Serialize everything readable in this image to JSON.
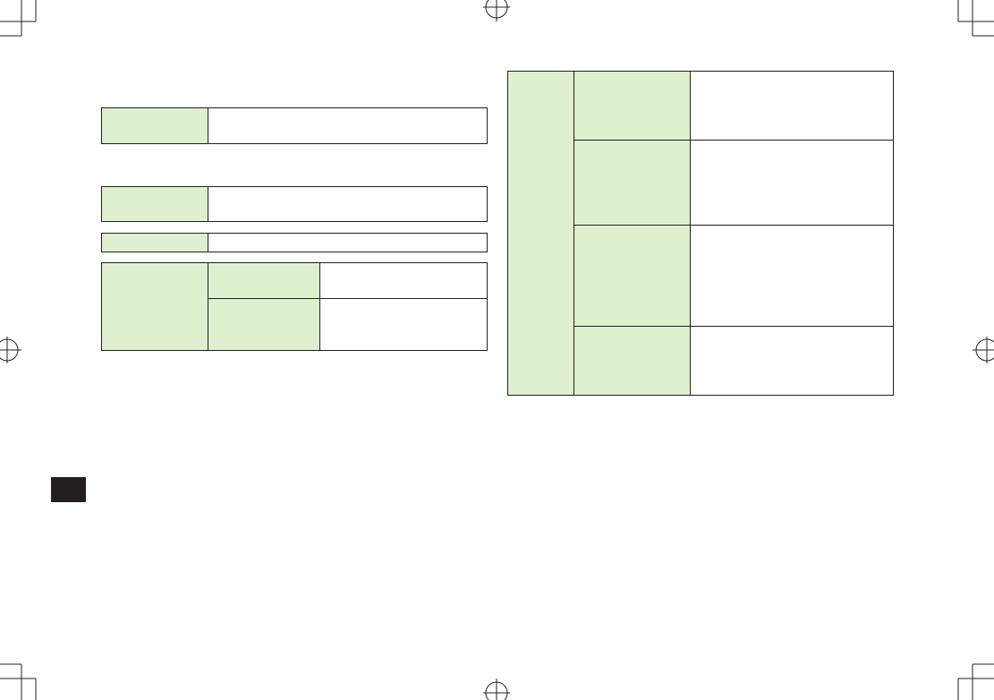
{
  "colors": {
    "header_cell": "#dff0cf",
    "border": "#231f20",
    "tab_marker": "#231f20"
  },
  "tables": {
    "left": [
      {
        "rows": 1,
        "cols": 2
      },
      {
        "rows": 1,
        "cols": 2
      },
      {
        "rows": 1,
        "cols": 2
      },
      {
        "rows": 2,
        "cols": 3
      }
    ],
    "right": {
      "rows": 4,
      "cols": 3
    }
  }
}
